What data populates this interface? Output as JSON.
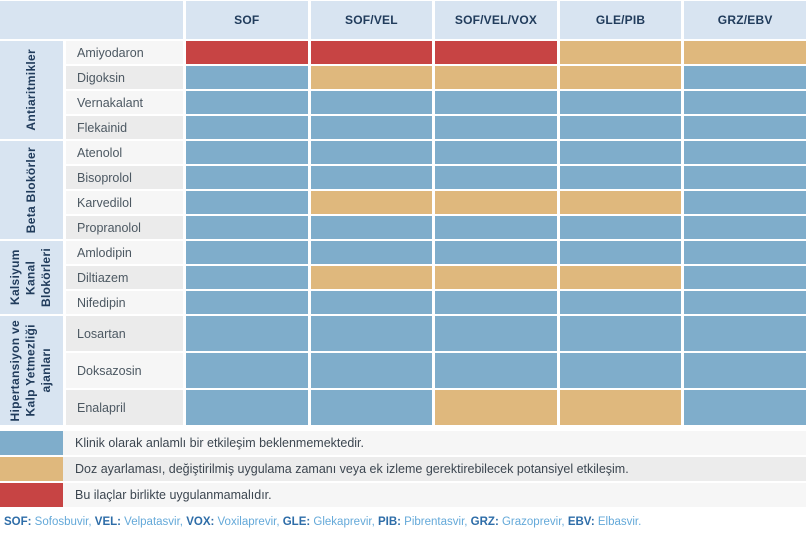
{
  "colors": {
    "none": "#7FADCB",
    "potential": "#DFB87D",
    "avoid": "#C74444",
    "header_bg": "#D8E4F1",
    "header_text": "#213C5C",
    "footnote_abbr": "#2E6DA8",
    "footnote_name": "#64A9D9"
  },
  "chart_data": {
    "type": "heatmap",
    "columns": [
      "SOF",
      "SOF/VEL",
      "SOF/VEL/VOX",
      "GLE/PIB",
      "GRZ/EBV"
    ],
    "groups": [
      {
        "label": "Antiaritmikler",
        "drugs": [
          {
            "name": "Amiyodaron",
            "cells": [
              "avoid",
              "avoid",
              "avoid",
              "potential",
              "potential"
            ]
          },
          {
            "name": "Digoksin",
            "cells": [
              "none",
              "potential",
              "potential",
              "potential",
              "none"
            ]
          },
          {
            "name": "Vernakalant",
            "cells": [
              "none",
              "none",
              "none",
              "none",
              "none"
            ]
          },
          {
            "name": "Flekainid",
            "cells": [
              "none",
              "none",
              "none",
              "none",
              "none"
            ]
          }
        ]
      },
      {
        "label": "Beta Blokörler",
        "drugs": [
          {
            "name": "Atenolol",
            "cells": [
              "none",
              "none",
              "none",
              "none",
              "none"
            ]
          },
          {
            "name": "Bisoprolol",
            "cells": [
              "none",
              "none",
              "none",
              "none",
              "none"
            ]
          },
          {
            "name": "Karvedilol",
            "cells": [
              "none",
              "potential",
              "potential",
              "potential",
              "none"
            ]
          },
          {
            "name": "Propranolol",
            "cells": [
              "none",
              "none",
              "none",
              "none",
              "none"
            ]
          }
        ]
      },
      {
        "label": "Kalsiyum\nKanal\nBlokörleri",
        "drugs": [
          {
            "name": "Amlodipin",
            "cells": [
              "none",
              "none",
              "none",
              "none",
              "none"
            ]
          },
          {
            "name": "Diltiazem",
            "cells": [
              "none",
              "potential",
              "potential",
              "potential",
              "none"
            ]
          },
          {
            "name": "Nifedipin",
            "cells": [
              "none",
              "none",
              "none",
              "none",
              "none"
            ]
          }
        ]
      },
      {
        "label": "Hipertansiyon ve\nKalp Yetmezliği\najanları",
        "drugs": [
          {
            "name": "Losartan",
            "cells": [
              "none",
              "none",
              "none",
              "none",
              "none"
            ]
          },
          {
            "name": "Doksazosin",
            "cells": [
              "none",
              "none",
              "none",
              "none",
              "none"
            ]
          },
          {
            "name": "Enalapril",
            "cells": [
              "none",
              "none",
              "potential",
              "potential",
              "none"
            ]
          }
        ]
      }
    ],
    "legend": [
      {
        "level": "none",
        "text": "Klinik olarak anlamlı bir etkileşim beklenmemektedir."
      },
      {
        "level": "potential",
        "text": "Doz ayarlaması, değiştirilmiş uygulama zamanı veya ek izleme gerektirebilecek potansiyel etkileşim."
      },
      {
        "level": "avoid",
        "text": "Bu ilaçlar birlikte uygulanmamalıdır."
      }
    ]
  },
  "footnote": {
    "items": [
      {
        "abbr": "SOF:",
        "name": "Sofosbuvir,"
      },
      {
        "abbr": "VEL:",
        "name": "Velpatasvir,"
      },
      {
        "abbr": "VOX:",
        "name": "Voxilaprevir,"
      },
      {
        "abbr": "GLE:",
        "name": "Glekaprevir,"
      },
      {
        "abbr": "PIB:",
        "name": "Pibrentasvir,"
      },
      {
        "abbr": "GRZ:",
        "name": "Grazoprevir,"
      },
      {
        "abbr": "EBV:",
        "name": "Elbasvir."
      }
    ]
  }
}
